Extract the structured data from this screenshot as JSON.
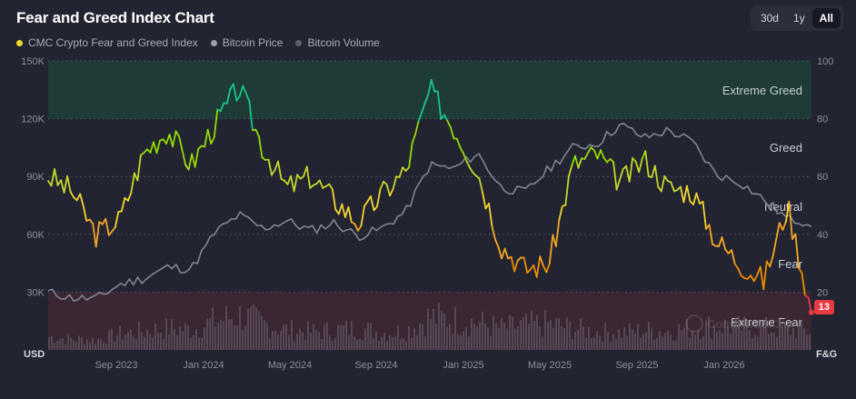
{
  "header": {
    "title": "Fear and Greed Index Chart",
    "range_tabs": [
      {
        "label": "30d",
        "active": false
      },
      {
        "label": "1y",
        "active": false
      },
      {
        "label": "All",
        "active": true
      }
    ]
  },
  "legend": [
    {
      "label": "CMC Crypto Fear and Greed Index",
      "color": "#f3d42f"
    },
    {
      "label": "Bitcoin Price",
      "color": "#9aa0ab"
    },
    {
      "label": "Bitcoin Volume",
      "color": "#5c606b"
    }
  ],
  "current_value": "13",
  "watermark": "CoinMarketCap",
  "colors": {
    "background": "#222531",
    "extreme_greed_zone": "#1e3b38",
    "extreme_fear_zone": "#3a2733",
    "price_line": "#7f8591",
    "volume_bars": "#5a4f5e",
    "current_badge": "#ea3943"
  },
  "chart_data": {
    "type": "line",
    "left_axis": {
      "unit": "USD",
      "ticks": [
        "150K",
        "120K",
        "90K",
        "60K",
        "30K"
      ],
      "values": [
        150000,
        120000,
        90000,
        60000,
        30000
      ],
      "range": [
        0,
        150000
      ]
    },
    "right_axis": {
      "unit": "F&G",
      "ticks": [
        "100",
        "80",
        "60",
        "40",
        "20"
      ],
      "values": [
        100,
        80,
        60,
        40,
        20
      ],
      "range": [
        0,
        100
      ]
    },
    "x_ticks": [
      "Sep 2023",
      "Jan 2024",
      "May 2024",
      "Sep 2024",
      "Jan 2025",
      "May 2025",
      "Sep 2025",
      "Jan 2026"
    ],
    "zones": [
      {
        "label": "Extreme Greed",
        "from": 80,
        "to": 100
      },
      {
        "label": "Greed",
        "from": 60,
        "to": 80
      },
      {
        "label": "Neutral",
        "from": 40,
        "to": 60
      },
      {
        "label": "Fear",
        "from": 20,
        "to": 40
      },
      {
        "label": "Extreme Fear",
        "from": 0,
        "to": 20
      }
    ],
    "series": [
      {
        "name": "CMC Crypto Fear and Greed Index",
        "axis": "right",
        "x": [
          "2023-07",
          "2023-08",
          "2023-09",
          "2023-10",
          "2023-11",
          "2023-12",
          "2024-01",
          "2024-02",
          "2024-03",
          "2024-04",
          "2024-05",
          "2024-06",
          "2024-07",
          "2024-08",
          "2024-09",
          "2024-10",
          "2024-11",
          "2024-12",
          "2025-01",
          "2025-02",
          "2025-03",
          "2025-04",
          "2025-05",
          "2025-06",
          "2025-07",
          "2025-08",
          "2025-09",
          "2025-10",
          "2025-11",
          "2025-12",
          "2026-01",
          "2026-02",
          "2026-03"
        ],
        "values": [
          60,
          55,
          40,
          45,
          68,
          76,
          64,
          78,
          91,
          70,
          56,
          60,
          52,
          44,
          54,
          62,
          90,
          77,
          62,
          36,
          28,
          30,
          64,
          68,
          58,
          66,
          56,
          55,
          38,
          30,
          24,
          50,
          13
        ]
      },
      {
        "name": "Bitcoin Price",
        "axis": "left",
        "x": [
          "2023-07",
          "2023-08",
          "2023-09",
          "2023-10",
          "2023-11",
          "2023-12",
          "2024-01",
          "2024-02",
          "2024-03",
          "2024-04",
          "2024-05",
          "2024-06",
          "2024-07",
          "2024-08",
          "2024-09",
          "2024-10",
          "2024-11",
          "2024-12",
          "2025-01",
          "2025-02",
          "2025-03",
          "2025-04",
          "2025-05",
          "2025-06",
          "2025-07",
          "2025-08",
          "2025-09",
          "2025-10",
          "2025-11",
          "2025-12",
          "2026-01",
          "2026-02",
          "2026-03"
        ],
        "values": [
          30000,
          27000,
          26500,
          34000,
          37000,
          43000,
          42000,
          61000,
          70000,
          63000,
          67000,
          62000,
          66000,
          59000,
          63000,
          72000,
          96000,
          94000,
          102000,
          84000,
          82000,
          94000,
          105000,
          107000,
          117000,
          110000,
          114000,
          108000,
          91000,
          87000,
          78000,
          68000,
          66000
        ]
      },
      {
        "name": "Bitcoin Volume",
        "axis": "none",
        "values": [
          18,
          15,
          14,
          22,
          26,
          30,
          28,
          40,
          48,
          36,
          28,
          25,
          27,
          30,
          24,
          26,
          45,
          42,
          38,
          30,
          34,
          36,
          30,
          25,
          24,
          27,
          26,
          30,
          34,
          31,
          30,
          28,
          26
        ]
      }
    ]
  }
}
